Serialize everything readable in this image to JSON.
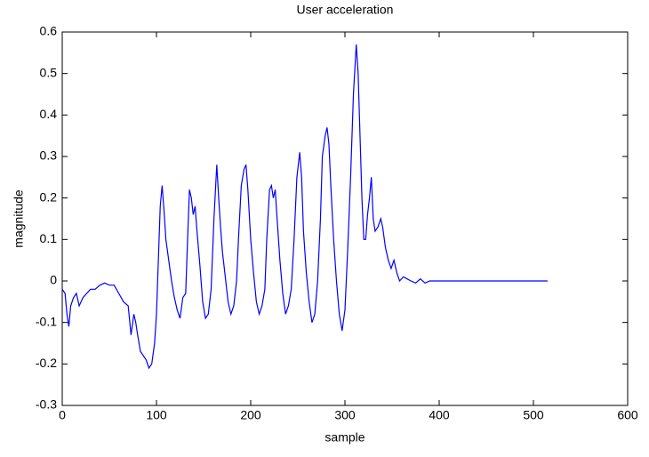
{
  "chart_data": {
    "type": "line",
    "title": "User acceleration",
    "x_label": "sample",
    "y_label": "magnitude",
    "xlim": [
      0,
      600
    ],
    "ylim": [
      -0.3,
      0.6
    ],
    "xticks": [
      0,
      100,
      200,
      300,
      400,
      500,
      600
    ],
    "yticks": [
      -0.3,
      -0.2,
      -0.1,
      0,
      0.1,
      0.2,
      0.3,
      0.4,
      0.5,
      0.6
    ],
    "grid": false,
    "series": [
      {
        "color": "#0000ff",
        "x": [
          0,
          3,
          5,
          7,
          9,
          12,
          15,
          18,
          22,
          26,
          30,
          35,
          40,
          45,
          50,
          55,
          60,
          65,
          70,
          73,
          76,
          78,
          80,
          83,
          86,
          89,
          92,
          95,
          98,
          100,
          102,
          104,
          106,
          108,
          110,
          113,
          116,
          119,
          122,
          125,
          128,
          131,
          133,
          135,
          137,
          139,
          141,
          143,
          146,
          149,
          152,
          155,
          158,
          161,
          164,
          166,
          168,
          170,
          173,
          176,
          179,
          182,
          185,
          187,
          190,
          193,
          195,
          197,
          200,
          203,
          206,
          209,
          212,
          215,
          217,
          220,
          222,
          224,
          226,
          228,
          231,
          234,
          237,
          240,
          243,
          246,
          249,
          252,
          254,
          256,
          259,
          262,
          265,
          268,
          271,
          274,
          276,
          279,
          281,
          283,
          285,
          288,
          291,
          294,
          297,
          300,
          303,
          306,
          309,
          312,
          314,
          316,
          318,
          320,
          322,
          324,
          326,
          328,
          330,
          332,
          335,
          338,
          340,
          343,
          346,
          349,
          352,
          355,
          358,
          362,
          366,
          370,
          375,
          380,
          385,
          390,
          395,
          515
        ],
        "values": [
          -0.02,
          -0.03,
          -0.08,
          -0.11,
          -0.06,
          -0.04,
          -0.03,
          -0.06,
          -0.04,
          -0.03,
          -0.02,
          -0.02,
          -0.01,
          -0.005,
          -0.01,
          -0.01,
          -0.03,
          -0.05,
          -0.06,
          -0.13,
          -0.08,
          -0.1,
          -0.13,
          -0.17,
          -0.18,
          -0.19,
          -0.21,
          -0.2,
          -0.15,
          -0.08,
          0.05,
          0.18,
          0.23,
          0.17,
          0.1,
          0.05,
          0.0,
          -0.04,
          -0.07,
          -0.09,
          -0.04,
          -0.03,
          0.1,
          0.22,
          0.2,
          0.16,
          0.18,
          0.12,
          0.04,
          -0.05,
          -0.09,
          -0.08,
          -0.02,
          0.15,
          0.28,
          0.2,
          0.13,
          0.07,
          0.01,
          -0.05,
          -0.08,
          -0.06,
          0.0,
          0.1,
          0.23,
          0.27,
          0.28,
          0.22,
          0.1,
          0.02,
          -0.05,
          -0.08,
          -0.06,
          -0.02,
          0.1,
          0.22,
          0.23,
          0.2,
          0.22,
          0.15,
          0.05,
          -0.03,
          -0.08,
          -0.06,
          -0.02,
          0.1,
          0.25,
          0.31,
          0.25,
          0.12,
          0.02,
          -0.05,
          -0.1,
          -0.08,
          0.0,
          0.15,
          0.3,
          0.35,
          0.37,
          0.33,
          0.23,
          0.1,
          0.0,
          -0.08,
          -0.12,
          -0.07,
          0.08,
          0.25,
          0.45,
          0.57,
          0.5,
          0.35,
          0.2,
          0.1,
          0.1,
          0.16,
          0.2,
          0.25,
          0.15,
          0.12,
          0.13,
          0.15,
          0.13,
          0.08,
          0.05,
          0.03,
          0.05,
          0.02,
          0.0,
          0.01,
          0.005,
          0.0,
          -0.005,
          0.005,
          -0.005,
          0.0,
          0.0,
          0.0
        ]
      }
    ]
  }
}
